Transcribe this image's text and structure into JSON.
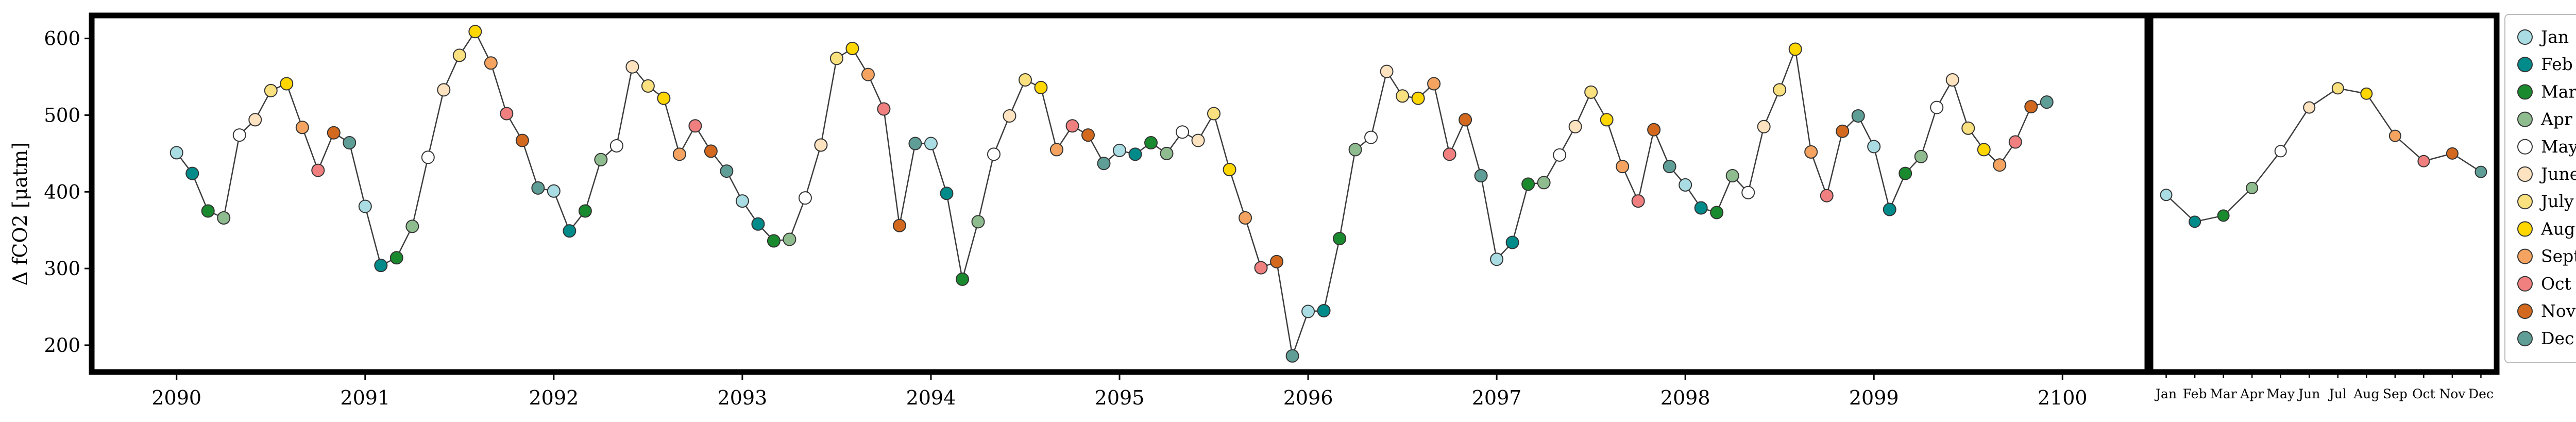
{
  "chart_data": {
    "type": "line",
    "ylabel": "Δ fCO2 [μatm]",
    "ylim": [
      165,
      630
    ],
    "yticks": [
      200,
      300,
      400,
      500,
      600
    ],
    "main": {
      "xlim": [
        2089.55,
        2100.45
      ],
      "xticks": [
        2090,
        2091,
        2092,
        2093,
        2094,
        2095,
        2096,
        2097,
        2098,
        2099,
        2100
      ],
      "xtick_labels": [
        "2090",
        "2091",
        "2092",
        "2093",
        "2094",
        "2095",
        "2096",
        "2097",
        "2098",
        "2099",
        "2100"
      ],
      "start_year": 2090,
      "y": [
        451,
        424,
        375,
        366,
        474,
        494,
        532,
        541,
        484,
        428,
        477,
        464,
        381,
        304,
        314,
        355,
        445,
        533,
        578,
        609,
        568,
        502,
        467,
        405,
        401,
        349,
        375,
        442,
        460,
        563,
        538,
        522,
        449,
        486,
        453,
        427,
        388,
        358,
        336,
        338,
        392,
        461,
        574,
        587,
        553,
        508,
        356,
        463,
        463,
        398,
        286,
        361,
        449,
        499,
        546,
        536,
        455,
        486,
        474,
        437,
        454,
        449,
        464,
        450,
        478,
        467,
        502,
        429,
        366,
        301,
        309,
        186,
        244,
        245,
        339,
        455,
        471,
        557,
        525,
        522,
        541,
        449,
        494,
        421,
        312,
        334,
        410,
        412,
        448,
        485,
        530,
        494,
        433,
        388,
        481,
        433,
        409,
        379,
        373,
        421,
        399,
        485,
        533,
        586,
        452,
        395,
        479,
        499,
        459,
        377,
        424,
        446,
        510,
        546,
        483,
        455,
        435,
        465,
        511,
        517
      ]
    },
    "climatology": {
      "categories": [
        "Jan",
        "Feb",
        "Mar",
        "Apr",
        "May",
        "Jun",
        "Jul",
        "Aug",
        "Sep",
        "Oct",
        "Nov",
        "Dec"
      ],
      "values": [
        396,
        361,
        369,
        405,
        453,
        510,
        535,
        528,
        473,
        440,
        450,
        426
      ]
    },
    "legend": {
      "position": "right",
      "entries": [
        "Jan",
        "Feb",
        "Mar",
        "Apr",
        "May",
        "June",
        "July",
        "Aug",
        "Sept",
        "Oct",
        "Nov",
        "Dec"
      ]
    },
    "month_colors": [
      "#a9dde3",
      "#008b8b",
      "#1a8a2e",
      "#8fbc8f",
      "#ffffff",
      "#fde3c0",
      "#fae17f",
      "#ffd700",
      "#f4a460",
      "#f08080",
      "#d2691e",
      "#5f9e97"
    ],
    "line_color": "#3c3c3c",
    "grid": false
  }
}
